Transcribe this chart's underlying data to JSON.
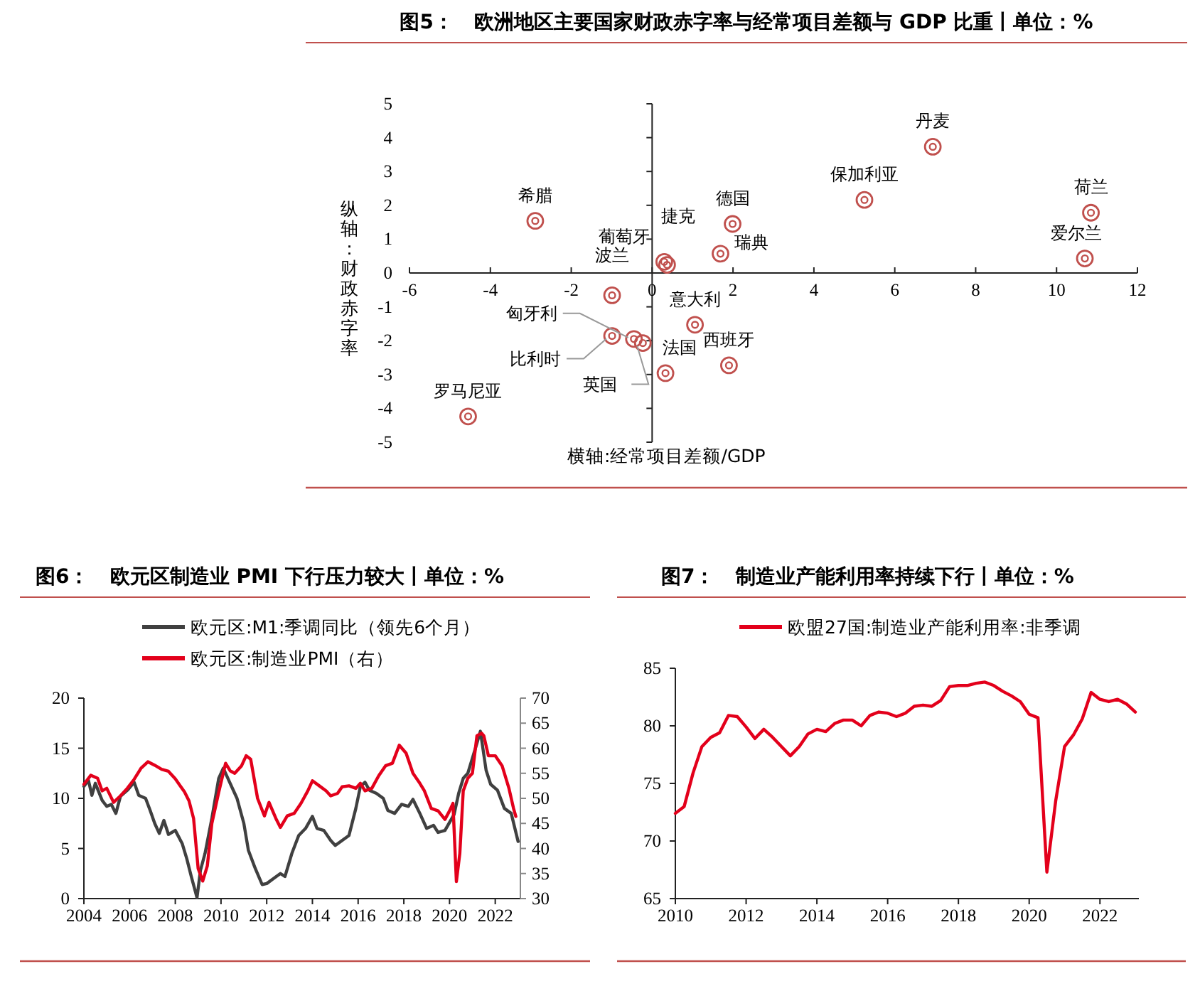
{
  "chart_data": [
    {
      "type": "scatter",
      "title": "图5：   欧洲地区主要国家财政赤字率与经常项目差额与 GDP 比重丨单位：%",
      "xlabel": "横轴:经常项目差额/GDP",
      "ylabel": "纵轴：财政赤字率",
      "xlim": [
        -6,
        12
      ],
      "xticks": [
        -6,
        -4,
        -2,
        0,
        2,
        4,
        6,
        8,
        10,
        12
      ],
      "ylim": [
        -5,
        5
      ],
      "yticks": [
        -5,
        -4,
        -3,
        -2,
        -1,
        0,
        1,
        2,
        3,
        4,
        5
      ],
      "marker": "circle",
      "series": [
        {
          "color": "#c0504d",
          "x": [
            -2.89,
            6.94,
            5.25,
            10.85,
            10.7,
            1.99,
            1.69,
            0.3,
            0.37,
            -0.99,
            1.06,
            1.9,
            0.33,
            -4.55,
            -0.45,
            -0.99,
            -0.23
          ],
          "values": [
            1.54,
            3.73,
            2.16,
            1.78,
            0.43,
            1.45,
            0.57,
            0.33,
            0.24,
            -0.66,
            -1.53,
            -2.73,
            -2.96,
            -4.24,
            -1.95,
            -1.86,
            -2.07
          ]
        }
      ],
      "annotations": [
        {
          "text": "希腊",
          "x": -2.89,
          "y": 1.54
        },
        {
          "text": "丹麦",
          "x": 6.94,
          "y": 3.73
        },
        {
          "text": "保加利亚",
          "x": 5.25,
          "y": 2.16
        },
        {
          "text": "荷兰",
          "x": 10.85,
          "y": 1.78
        },
        {
          "text": "爱尔兰",
          "x": 10.7,
          "y": 0.43
        },
        {
          "text": "德国",
          "x": 1.99,
          "y": 1.45
        },
        {
          "text": "瑞典",
          "x": 1.69,
          "y": 0.57
        },
        {
          "text": "捷克",
          "x": 0.3,
          "y": 0.33
        },
        {
          "text": "葡萄牙",
          "x": 0.37,
          "y": 0.24
        },
        {
          "text": "波兰",
          "x": -0.99,
          "y": -0.66
        },
        {
          "text": "意大利",
          "x": 1.06,
          "y": -1.53
        },
        {
          "text": "西班牙",
          "x": 1.9,
          "y": -2.73
        },
        {
          "text": "法国",
          "x": 0.33,
          "y": -2.96
        },
        {
          "text": "罗马尼亚",
          "x": -4.55,
          "y": -4.24
        },
        {
          "text": "匈牙利",
          "x": -0.45,
          "y": -1.95
        },
        {
          "text": "比利时",
          "x": -0.99,
          "y": -1.86
        },
        {
          "text": "英国",
          "x": -0.23,
          "y": -2.07
        }
      ]
    },
    {
      "type": "line",
      "title": "图6：   欧元区制造业 PMI 下行压力较大丨单位：%",
      "xlim": [
        2004,
        2023.1
      ],
      "xticks": [
        2004,
        2006,
        2008,
        2010,
        2012,
        2014,
        2016,
        2018,
        2020,
        2022
      ],
      "ylim": [
        0,
        20
      ],
      "yticks": [
        0,
        5,
        10,
        15,
        20
      ],
      "y2lim": [
        30,
        70
      ],
      "y2ticks": [
        30,
        35,
        40,
        45,
        50,
        55,
        60,
        65,
        70
      ],
      "grid": false,
      "legend": "top left",
      "series": [
        {
          "name": "欧元区:M1:季调同比（领先6个月）",
          "color": "#404040",
          "x": [
            2004.0,
            2004.2,
            2004.35,
            2004.5,
            2004.8,
            2005.0,
            2005.2,
            2005.4,
            2005.6,
            2005.9,
            2006.2,
            2006.4,
            2006.7,
            2006.9,
            2007.1,
            2007.3,
            2007.5,
            2007.7,
            2008.0,
            2008.3,
            2008.5,
            2008.7,
            2008.95,
            2009.1,
            2009.3,
            2009.6,
            2009.9,
            2010.1,
            2010.4,
            2010.7,
            2011.0,
            2011.2,
            2011.5,
            2011.8,
            2012.0,
            2012.3,
            2012.6,
            2012.8,
            2013.1,
            2013.4,
            2013.7,
            2014.0,
            2014.2,
            2014.5,
            2014.8,
            2015.0,
            2015.3,
            2015.6,
            2015.9,
            2016.1,
            2016.3,
            2016.5,
            2016.8,
            2017.1,
            2017.3,
            2017.6,
            2017.9,
            2018.2,
            2018.4,
            2018.7,
            2019.0,
            2019.3,
            2019.5,
            2019.8,
            2020.0,
            2020.2,
            2020.4,
            2020.6,
            2020.8,
            2021.0,
            2021.2,
            2021.35,
            2021.6,
            2021.8,
            2022.1,
            2022.4,
            2022.7,
            2023.0
          ],
          "values": [
            11.2,
            11.8,
            10.3,
            11.5,
            9.8,
            9.2,
            9.4,
            8.5,
            10.2,
            10.8,
            11.6,
            10.3,
            10.0,
            8.8,
            7.5,
            6.5,
            7.8,
            6.4,
            6.8,
            5.5,
            4.0,
            2.2,
            0.1,
            2.8,
            4.5,
            8.0,
            12.0,
            13.0,
            11.5,
            10.0,
            7.5,
            4.8,
            3.0,
            1.4,
            1.5,
            2.0,
            2.5,
            2.2,
            4.5,
            6.3,
            7.0,
            8.2,
            7.0,
            6.8,
            5.8,
            5.3,
            5.8,
            6.3,
            9.0,
            11.2,
            11.6,
            10.8,
            10.5,
            10.0,
            8.8,
            8.5,
            9.4,
            9.2,
            9.9,
            8.5,
            7.0,
            7.3,
            6.6,
            6.8,
            7.6,
            8.4,
            10.5,
            12.0,
            12.5,
            14.0,
            15.5,
            16.7,
            12.8,
            11.4,
            10.8,
            9.0,
            8.5,
            5.7
          ]
        },
        {
          "name": "欧元区:制造业PMI（右）",
          "color": "#e3001b",
          "axis": "y2",
          "x": [
            2004.0,
            2004.3,
            2004.6,
            2004.8,
            2005.0,
            2005.3,
            2005.6,
            2005.9,
            2006.2,
            2006.5,
            2006.8,
            2007.1,
            2007.4,
            2007.7,
            2008.0,
            2008.2,
            2008.4,
            2008.6,
            2008.8,
            2009.0,
            2009.2,
            2009.4,
            2009.6,
            2009.9,
            2010.2,
            2010.4,
            2010.6,
            2010.9,
            2011.1,
            2011.3,
            2011.6,
            2011.9,
            2012.1,
            2012.4,
            2012.6,
            2012.9,
            2013.2,
            2013.5,
            2013.8,
            2014.0,
            2014.3,
            2014.6,
            2014.8,
            2015.1,
            2015.3,
            2015.6,
            2015.9,
            2016.1,
            2016.3,
            2016.6,
            2016.9,
            2017.2,
            2017.5,
            2017.8,
            2018.1,
            2018.4,
            2018.7,
            2018.9,
            2019.2,
            2019.5,
            2019.8,
            2020.0,
            2020.15,
            2020.3,
            2020.45,
            2020.6,
            2020.8,
            2021.0,
            2021.2,
            2021.4,
            2021.5,
            2021.7,
            2022.0,
            2022.3,
            2022.6,
            2022.8,
            2022.9
          ],
          "values": [
            52.8,
            54.6,
            54.0,
            51.5,
            52.0,
            49.2,
            50.5,
            52.0,
            53.8,
            56.0,
            57.3,
            56.6,
            55.8,
            55.4,
            53.9,
            52.6,
            51.3,
            49.5,
            46.0,
            36.0,
            33.5,
            36.5,
            45.0,
            51.2,
            57.0,
            55.5,
            55.0,
            56.5,
            58.5,
            57.8,
            50.0,
            46.5,
            49.2,
            46.0,
            44.2,
            46.5,
            47.0,
            49.0,
            51.5,
            53.5,
            52.5,
            51.5,
            50.5,
            51.0,
            52.3,
            52.5,
            52.0,
            53.0,
            51.5,
            52.0,
            54.5,
            56.5,
            57.0,
            60.6,
            59.0,
            55.0,
            53.0,
            51.5,
            48.0,
            47.5,
            45.8,
            47.5,
            49.0,
            33.4,
            39.0,
            51.5,
            54.0,
            55.0,
            62.5,
            63.0,
            62.5,
            58.5,
            58.5,
            56.5,
            52.0,
            48.0,
            46.4
          ]
        }
      ]
    },
    {
      "type": "line",
      "title": "图7：   制造业产能利用率持续下行丨单位：%",
      "xlim": [
        2010,
        2023.1
      ],
      "xticks": [
        2010,
        2012,
        2014,
        2016,
        2018,
        2020,
        2022
      ],
      "ylim": [
        65,
        85
      ],
      "yticks": [
        65,
        70,
        75,
        80,
        85
      ],
      "grid": false,
      "legend": "top",
      "series": [
        {
          "name": "欧盟27国:制造业产能利用率:非季调",
          "color": "#e3001b",
          "x": [
            2010.0,
            2010.25,
            2010.5,
            2010.75,
            2011.0,
            2011.25,
            2011.5,
            2011.75,
            2012.0,
            2012.25,
            2012.5,
            2012.75,
            2013.0,
            2013.25,
            2013.5,
            2013.75,
            2014.0,
            2014.25,
            2014.5,
            2014.75,
            2015.0,
            2015.25,
            2015.5,
            2015.75,
            2016.0,
            2016.25,
            2016.5,
            2016.75,
            2017.0,
            2017.25,
            2017.5,
            2017.75,
            2018.0,
            2018.25,
            2018.5,
            2018.75,
            2019.0,
            2019.25,
            2019.5,
            2019.75,
            2020.0,
            2020.25,
            2020.5,
            2020.75,
            2021.0,
            2021.25,
            2021.5,
            2021.75,
            2022.0,
            2022.25,
            2022.5,
            2022.75,
            2023.0
          ],
          "values": [
            72.4,
            73.0,
            75.9,
            78.2,
            79.0,
            79.4,
            80.9,
            80.8,
            79.9,
            78.9,
            79.7,
            79.0,
            78.2,
            77.4,
            78.2,
            79.3,
            79.7,
            79.5,
            80.2,
            80.5,
            80.5,
            80.0,
            80.9,
            81.2,
            81.1,
            80.8,
            81.1,
            81.7,
            81.8,
            81.7,
            82.2,
            83.4,
            83.5,
            83.5,
            83.7,
            83.8,
            83.5,
            83.0,
            82.6,
            82.1,
            81.0,
            80.7,
            67.3,
            73.5,
            78.2,
            79.2,
            80.6,
            82.9,
            82.3,
            82.1,
            82.3,
            81.9,
            81.2
          ]
        }
      ]
    }
  ]
}
